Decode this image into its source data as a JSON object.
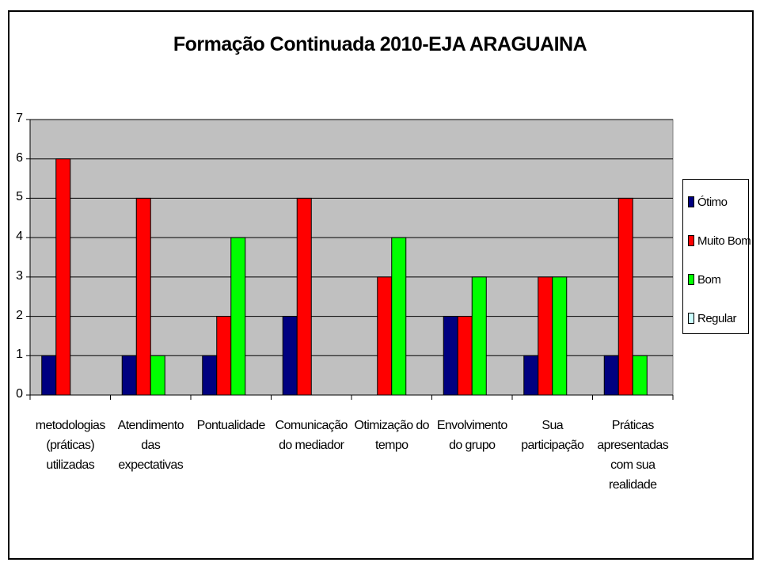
{
  "chart_data": {
    "type": "bar",
    "title": "Formação Continuada 2010-EJA ARAGUAINA",
    "categories": [
      [
        "metodologias",
        "(práticas)",
        "utilizadas"
      ],
      [
        "Atendimento",
        "das",
        "expectativas"
      ],
      [
        "Pontualidade"
      ],
      [
        "Comunicação",
        "do mediador"
      ],
      [
        "Otimização do",
        "tempo"
      ],
      [
        "Envolvimento",
        "do grupo"
      ],
      [
        "Sua",
        "participação"
      ],
      [
        "Práticas",
        "apresentadas",
        "com sua",
        "realidade"
      ]
    ],
    "series": [
      {
        "name": "Ótimo",
        "color": "#000080",
        "values": [
          1,
          1,
          1,
          2,
          0,
          2,
          1,
          1
        ]
      },
      {
        "name": "Muito Bom",
        "color": "#ff0000",
        "values": [
          6,
          5,
          2,
          5,
          3,
          2,
          3,
          5
        ]
      },
      {
        "name": "Bom",
        "color": "#00ff00",
        "values": [
          0,
          1,
          4,
          0,
          4,
          3,
          3,
          1
        ]
      },
      {
        "name": "Regular",
        "color": "#ccffff",
        "values": [
          0,
          0,
          0,
          0,
          0,
          0,
          0,
          0
        ]
      }
    ],
    "ylim": [
      0,
      7
    ],
    "yticks": [
      0,
      1,
      2,
      3,
      4,
      5,
      6,
      7
    ],
    "grid": true,
    "plot_background": "#c0c0c0",
    "legend_position": "right"
  }
}
